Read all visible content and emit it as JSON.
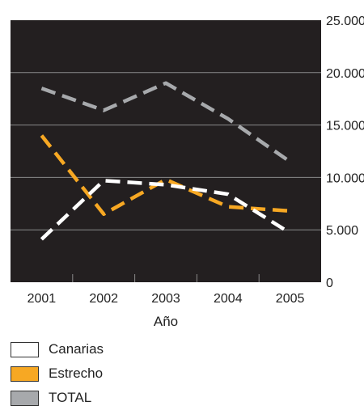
{
  "chart_data": {
    "type": "line",
    "title": "",
    "xlabel": "Año",
    "ylabel": "",
    "categories": [
      "2001",
      "2002",
      "2003",
      "2004",
      "2005"
    ],
    "ylim": [
      0,
      25000
    ],
    "y_tick_labels": [
      "0",
      "5.000",
      "10.000",
      "15.000",
      "20.000",
      "25.000"
    ],
    "y_tick_values": [
      0,
      5000,
      10000,
      15000,
      20000,
      25000
    ],
    "grid": true,
    "plot_background": "#231f20",
    "line_style": "dashed",
    "legend_position": "bottom-left",
    "series": [
      {
        "name": "Canarias",
        "color": "#ffffff",
        "values": [
          4100,
          9700,
          9300,
          8400,
          4700
        ]
      },
      {
        "name": "Estrecho",
        "color": "#f7a823",
        "values": [
          14000,
          6500,
          9800,
          7200,
          6800
        ]
      },
      {
        "name": "TOTAL",
        "color": "#a7a9ac",
        "values": [
          18500,
          16400,
          19000,
          15600,
          11500
        ]
      }
    ]
  }
}
